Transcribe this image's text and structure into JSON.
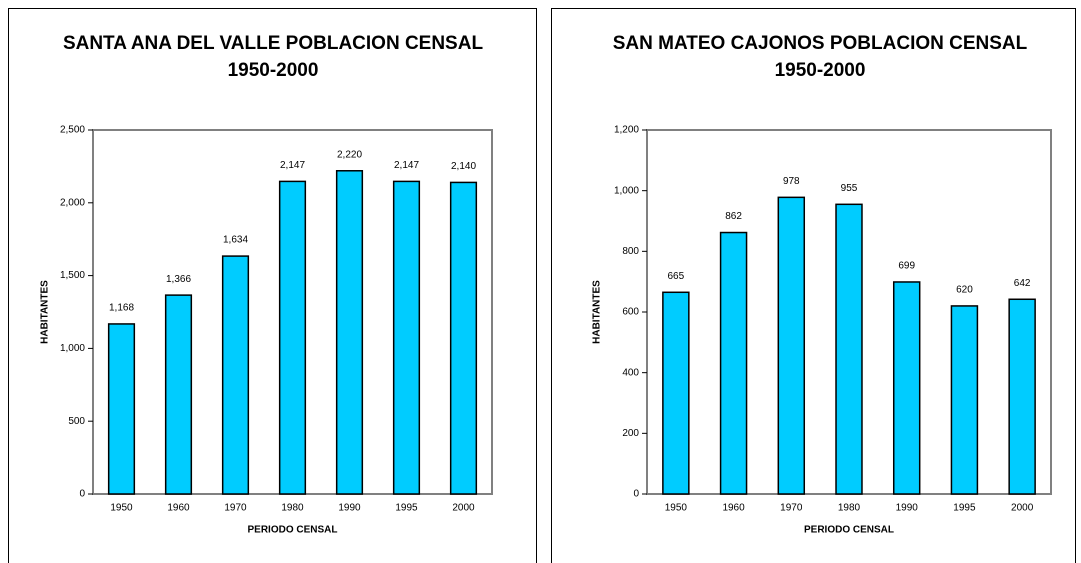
{
  "chart_data": [
    {
      "type": "bar",
      "title": "SANTA ANA DEL VALLE POBLACION CENSAL 1950-2000",
      "x_label": "PERIODO CENSAL",
      "y_label": "HABITANTES",
      "categories": [
        "1950",
        "1960",
        "1970",
        "1980",
        "1990",
        "1995",
        "2000"
      ],
      "values": [
        1168,
        1366,
        1634,
        2147,
        2220,
        2147,
        2140
      ],
      "value_labels": [
        "1,168",
        "1,366",
        "1,634",
        "2,147",
        "2,220",
        "2,147",
        "2,140"
      ],
      "color": "#00ccff",
      "ylim": [
        0,
        2500
      ],
      "yticks": [
        0,
        500,
        {
          "value": 1000,
          "label": "1,000"
        },
        {
          "value": 1500,
          "label": "1,500"
        },
        {
          "value": 2000,
          "label": "2,000"
        },
        {
          "value": 2500,
          "label": "2,500"
        }
      ],
      "grid": false
    },
    {
      "type": "bar",
      "title": "SAN MATEO CAJONOS POBLACION CENSAL 1950-2000",
      "x_label": "PERIODO CENSAL",
      "y_label": "HABITANTES",
      "categories": [
        "1950",
        "1960",
        "1970",
        "1980",
        "1990",
        "1995",
        "2000"
      ],
      "values": [
        665,
        862,
        978,
        955,
        699,
        620,
        642
      ],
      "color": "#00ccff",
      "ylim": [
        0,
        1200
      ],
      "yticks": [
        0,
        200,
        400,
        600,
        800,
        {
          "value": 1000,
          "label": "1,000"
        },
        {
          "value": 1200,
          "label": "1,200"
        }
      ],
      "grid": false
    }
  ]
}
